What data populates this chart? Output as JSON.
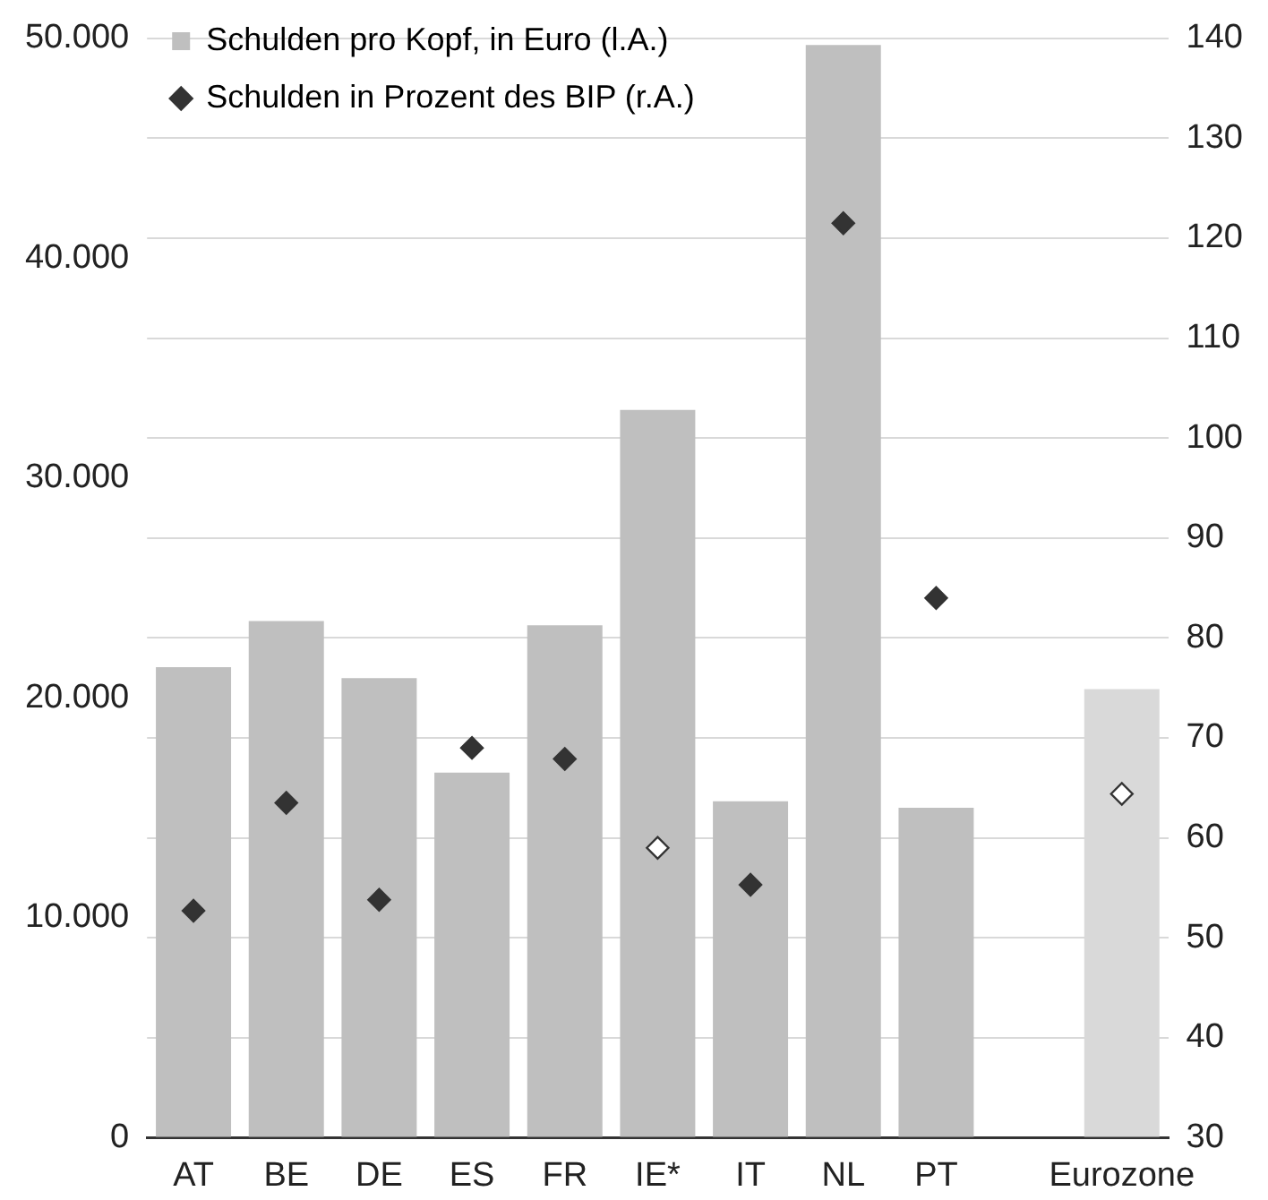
{
  "chart_data": {
    "type": "bar",
    "categories": [
      "AT",
      "BE",
      "DE",
      "ES",
      "FR",
      "IE*",
      "IT",
      "NL",
      "PT",
      null,
      "Eurozone"
    ],
    "series": [
      {
        "name": "Schulden pro Kopf, in Euro (l.A.)",
        "color": "#bfbfbf",
        "colors": [
          "#bfbfbf",
          "#bfbfbf",
          "#bfbfbf",
          "#bfbfbf",
          "#bfbfbf",
          "#bfbfbf",
          "#bfbfbf",
          "#bfbfbf",
          "#bfbfbf",
          "#bfbfbf",
          "#d9d9d9"
        ],
        "values": [
          21400,
          23500,
          20900,
          16600,
          23300,
          33100,
          15300,
          49700,
          15000,
          null,
          20400
        ]
      },
      {
        "name": "Schulden in Prozent des BIP (r.A.)",
        "type": "scatter",
        "axis": "y2",
        "marker": "diamond",
        "color": "#333333",
        "colors": [
          "#333333",
          "#333333",
          "#333333",
          "#333333",
          "#333333",
          "#ffffff",
          "#333333",
          "#333333",
          "#333333",
          "#333333",
          "#ffffff"
        ],
        "values": [
          52.7,
          63.5,
          53.8,
          69,
          67.9,
          59,
          55.3,
          121.5,
          84,
          null,
          64.4
        ]
      }
    ],
    "ylim": [
      0,
      50000
    ],
    "yticks": [
      {
        "value": 0,
        "label": "0"
      },
      {
        "value": 10000,
        "label": "10.000"
      },
      {
        "value": 20000,
        "label": "20.000"
      },
      {
        "value": 30000,
        "label": "30.000"
      },
      {
        "value": 40000,
        "label": "40.000"
      },
      {
        "value": 50000,
        "label": "50.000"
      }
    ],
    "y2lim": [
      30,
      140
    ],
    "y2ticks": [
      30,
      40,
      50,
      60,
      70,
      80,
      90,
      100,
      110,
      120,
      130,
      140
    ],
    "grid": true,
    "legend": "top left"
  }
}
